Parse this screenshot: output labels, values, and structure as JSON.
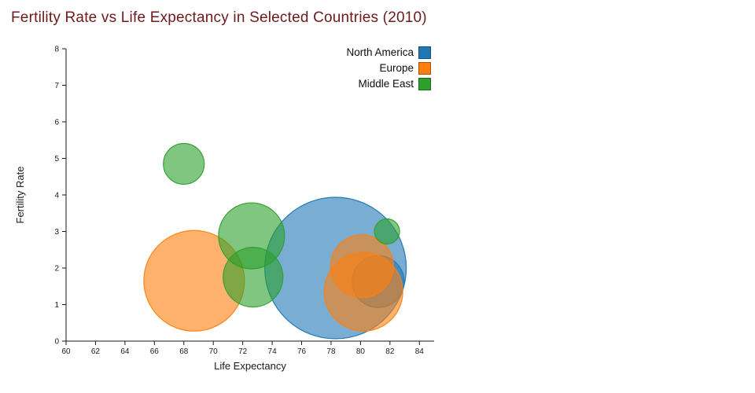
{
  "title_color": "#6e1a1a",
  "chart_data": {
    "type": "scatter",
    "subtype": "bubble",
    "title": "Fertility Rate vs Life Expectancy in Selected Countries (2010)",
    "xlabel": "Life Expectancy",
    "ylabel": "Fertility Rate",
    "xlim": [
      60,
      85
    ],
    "ylim": [
      0,
      8
    ],
    "x_ticks": [
      60,
      62,
      64,
      66,
      68,
      70,
      72,
      74,
      76,
      78,
      80,
      82,
      84
    ],
    "y_ticks": [
      0,
      1,
      2,
      3,
      4,
      5,
      6,
      7,
      8
    ],
    "grid": false,
    "legend_position": "top-center-right",
    "bubble_opacity": 0.6,
    "series": [
      {
        "name": "North America",
        "color": "#1f77b4",
        "points": [
          {
            "x": 78.3,
            "y": 2.0,
            "r": 90
          },
          {
            "x": 81.2,
            "y": 1.63,
            "r": 33
          }
        ]
      },
      {
        "name": "Europe",
        "color": "#ff7f0e",
        "points": [
          {
            "x": 68.7,
            "y": 1.65,
            "r": 64
          },
          {
            "x": 80.1,
            "y": 2.05,
            "r": 40
          },
          {
            "x": 80.2,
            "y": 1.35,
            "r": 50
          }
        ]
      },
      {
        "name": "Middle East",
        "color": "#2ca02c",
        "points": [
          {
            "x": 68.0,
            "y": 4.85,
            "r": 26
          },
          {
            "x": 72.6,
            "y": 2.88,
            "r": 42
          },
          {
            "x": 72.7,
            "y": 1.75,
            "r": 38
          },
          {
            "x": 81.8,
            "y": 3.0,
            "r": 16
          }
        ]
      }
    ]
  }
}
